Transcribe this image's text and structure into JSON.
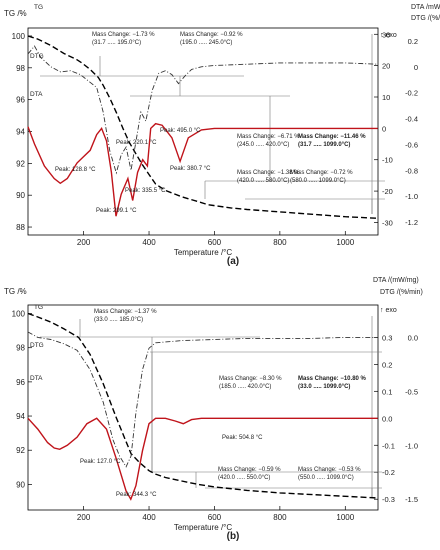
{
  "chart_data": [
    {
      "type": "line",
      "panel_label": "(a)",
      "xlabel": "Temperature /°C",
      "ylabel_left": "TG /%",
      "ylabel_right_1": "DTA /mW",
      "ylabel_right_2": "DTG /(%/min)",
      "exo_label": "↑ exo",
      "xlim": [
        30,
        1100
      ],
      "ylim_left": [
        87.5,
        100.5
      ],
      "ylim_dta": [
        -34,
        32
      ],
      "ylim_dtg": [
        -1.3,
        0.3
      ],
      "x_ticks": [
        200,
        400,
        600,
        800,
        1000
      ],
      "y_ticks_left": [
        88,
        90,
        92,
        94,
        96,
        98,
        100
      ],
      "y_ticks_dta": [
        30,
        20,
        10,
        0,
        -10,
        -20,
        -30
      ],
      "y_ticks_dtg": [
        0.2,
        0,
        -0.2,
        -0.4,
        -0.6,
        -0.8,
        -1.0,
        -1.2
      ],
      "y_tick_labels_dtg": [
        "0.2",
        "0",
        "-0.2",
        "-0.4",
        "-0.6",
        "-0.8",
        "-1.0",
        "-1.2"
      ],
      "grid": false,
      "series": [
        {
          "name": "TG",
          "axis": "left",
          "style": "dashed",
          "color": "#000000",
          "x": [
            30,
            60,
            100,
            140,
            180,
            195,
            220,
            245,
            260,
            280,
            300,
            320,
            340,
            360,
            380,
            400,
            420,
            450,
            500,
            550,
            580,
            650,
            700,
            800,
            900,
            1000,
            1099
          ],
          "y": [
            100.0,
            99.8,
            99.4,
            98.9,
            98.5,
            98.3,
            97.9,
            97.4,
            96.9,
            96.1,
            95.2,
            94.2,
            93.3,
            92.6,
            91.9,
            91.3,
            90.7,
            90.3,
            89.9,
            89.6,
            89.4,
            89.2,
            89.1,
            88.95,
            88.8,
            88.65,
            88.55
          ]
        },
        {
          "name": "DTG",
          "axis": "dtg",
          "style": "dashdot",
          "color": "#333333",
          "x": [
            30,
            50,
            70,
            100,
            130,
            160,
            190,
            220,
            240,
            260,
            280,
            300,
            315,
            330,
            345,
            360,
            375,
            390,
            410,
            430,
            450,
            470,
            490,
            510,
            530,
            560,
            600,
            700,
            800,
            900,
            1000,
            1099
          ],
          "y": [
            0.1,
            0.16,
            0.07,
            0.0,
            -0.04,
            -0.03,
            -0.06,
            -0.12,
            -0.16,
            -0.35,
            -0.65,
            -0.82,
            -0.68,
            -0.62,
            -0.8,
            -0.58,
            -0.35,
            -0.42,
            -0.18,
            -0.05,
            -0.03,
            -0.06,
            -0.13,
            -0.07,
            -0.02,
            0.0,
            0.01,
            0.02,
            0.03,
            0.03,
            0.03,
            0.02
          ]
        },
        {
          "name": "DTA",
          "axis": "dta",
          "style": "solid",
          "color": "#c0141b",
          "x": [
            30,
            50,
            80,
            110,
            128.8,
            150,
            180,
            200,
            220.1,
            240,
            255,
            270,
            285,
            299.1,
            315,
            335.5,
            350,
            365,
            380.7,
            395,
            405,
            420,
            440,
            470,
            495,
            520,
            560,
            600,
            700,
            800,
            900,
            1000,
            1099
          ],
          "y": [
            0.5,
            -5,
            -12,
            -16,
            -17.5,
            -16,
            -11,
            -9,
            -7,
            -2,
            0,
            -4,
            -14,
            -28,
            -21,
            -16,
            -23,
            -14,
            -10,
            -12,
            0,
            1.5,
            1,
            -3,
            -10.5,
            -3,
            -0.5,
            0,
            0,
            0,
            0,
            0,
            0
          ]
        }
      ],
      "annotations": [
        {
          "lines": [
            "Mass Change: −1.73 %",
            "(31.7 ..... 195.0°C)"
          ]
        },
        {
          "lines": [
            "Mass Change: −0.92 %",
            "(195.0 ..... 245.0°C)"
          ]
        },
        {
          "lines": [
            "Mass Change: −6.71 %",
            "(245.0 ..... 420.0°C)"
          ]
        },
        {
          "lines": [
            "Mass Change: −1.38 %",
            "(420.0 ..... 580.0°C)"
          ]
        },
        {
          "lines": [
            "Mass Change: −0.72 %",
            "(580.0 ..... 1099.0°C)"
          ]
        },
        {
          "lines": [
            "Mass Change: −11.46 %",
            "(31.7 ..... 1099.0°C)"
          ],
          "bold": true
        }
      ],
      "peaks": [
        "Peak: 128.8 °C",
        "Peak: 220.1 °C",
        "Peak: 299.1 °C",
        "Peak: 335.5 °C",
        "Peak: 380.7 °C",
        "Peak: 495.0 °C"
      ]
    },
    {
      "type": "line",
      "panel_label": "(b)",
      "xlabel": "Temperature /°C",
      "ylabel_left": "TG /%",
      "ylabel_right_1": "DTA /(mW/mg)",
      "ylabel_right_2": "DTG /(%/min)",
      "exo_label": "↑ exo",
      "xlim": [
        30,
        1100
      ],
      "ylim_left": [
        88.5,
        100.5
      ],
      "ylim_dta": [
        -0.34,
        0.42
      ],
      "ylim_dtg": [
        -1.6,
        0.3
      ],
      "x_ticks": [
        200,
        400,
        600,
        800,
        1000
      ],
      "y_ticks_left": [
        90,
        92,
        94,
        96,
        98,
        100
      ],
      "y_ticks_dta": [
        0.3,
        0.2,
        0.1,
        0.0,
        -0.1,
        -0.2,
        -0.3
      ],
      "y_tick_labels_dta": [
        "0.3",
        "0.2",
        "0.1",
        "0.0",
        "-0.1",
        "-0.2",
        "-0.3"
      ],
      "y_ticks_dtg": [
        0.0,
        -0.5,
        -1.0,
        -1.5
      ],
      "y_tick_labels_dtg": [
        "0.0",
        "-0.5",
        "-1.0",
        "-1.5"
      ],
      "grid": false,
      "series": [
        {
          "name": "TG",
          "axis": "left",
          "style": "dashed",
          "color": "#000000",
          "x": [
            30,
            60,
            100,
            140,
            185,
            220,
            260,
            300,
            330,
            345,
            370,
            400,
            420,
            450,
            500,
            550,
            600,
            700,
            800,
            900,
            1000,
            1099
          ],
          "y": [
            100.0,
            99.8,
            99.5,
            99.1,
            98.6,
            97.6,
            95.9,
            93.9,
            92.5,
            91.8,
            91.3,
            90.8,
            90.6,
            90.4,
            90.2,
            90.0,
            89.85,
            89.65,
            89.5,
            89.4,
            89.3,
            89.2
          ]
        },
        {
          "name": "DTG",
          "axis": "dtg",
          "style": "dashdot",
          "color": "#333333",
          "x": [
            30,
            60,
            100,
            140,
            180,
            220,
            260,
            290,
            310,
            330,
            345,
            360,
            380,
            400,
            420,
            460,
            500,
            600,
            700,
            800,
            900,
            1000,
            1099
          ],
          "y": [
            0.05,
            0.0,
            -0.02,
            -0.06,
            -0.12,
            -0.3,
            -0.6,
            -0.95,
            -1.1,
            -1.2,
            -1.1,
            -0.7,
            -0.3,
            -0.1,
            -0.05,
            -0.04,
            -0.03,
            -0.02,
            -0.01,
            -0.01,
            -0.01,
            0.0,
            0.0
          ]
        },
        {
          "name": "DTA",
          "axis": "dta",
          "style": "solid",
          "color": "#c0141b",
          "x": [
            30,
            60,
            90,
            110,
            127,
            150,
            180,
            210,
            240,
            270,
            300,
            330,
            344.3,
            360,
            380,
            400,
            420,
            450,
            480,
            504.8,
            530,
            560,
            600,
            700,
            800,
            900,
            1000,
            1099
          ],
          "y": [
            0.0,
            -0.04,
            -0.09,
            -0.11,
            -0.115,
            -0.1,
            -0.07,
            -0.02,
            0.0,
            -0.04,
            -0.15,
            -0.27,
            -0.3,
            -0.25,
            -0.12,
            -0.02,
            0.0,
            0.0,
            -0.01,
            -0.02,
            -0.005,
            0.0,
            0.0,
            0.0,
            0.0,
            0.0,
            0.0,
            0.0
          ]
        }
      ],
      "annotations": [
        {
          "lines": [
            "Mass Change: −1.37 %",
            "(33.0 ..... 185.0°C)"
          ]
        },
        {
          "lines": [
            "Mass Change: −8.30 %",
            "(185.0 ..... 420.0°C)"
          ]
        },
        {
          "lines": [
            "Mass Change: −10.80 %",
            "(33.0 ..... 1099.0°C)"
          ],
          "bold": true
        },
        {
          "lines": [
            "Mass Change: −0.59 %",
            "(420.0 ..... 550.0°C)"
          ]
        },
        {
          "lines": [
            "Mass Change: −0.53 %",
            "(550.0 ..... 1099.0°C)"
          ]
        }
      ],
      "peaks": [
        "Peak: 127.0 °C",
        "Peak: 344.3 °C",
        "Peak: 504.8 °C"
      ]
    }
  ]
}
